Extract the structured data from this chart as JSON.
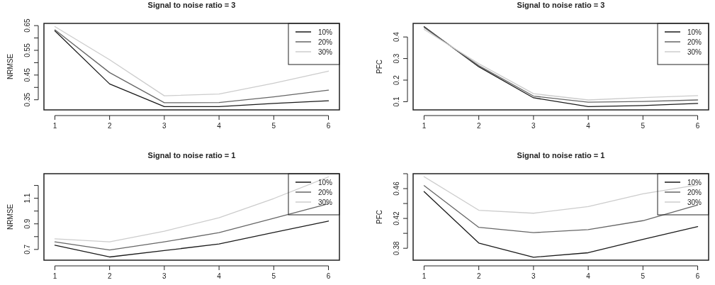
{
  "chart_data": [
    {
      "type": "line",
      "title": "Signal to noise ratio = 3",
      "ylabel": "NRMSE",
      "x": [
        1,
        2,
        3,
        4,
        5,
        6
      ],
      "xlim": [
        0.8,
        6.2
      ],
      "xticks": [
        1,
        2,
        3,
        4,
        5,
        6
      ],
      "ylim": [
        0.309,
        0.659
      ],
      "yticks": [
        0.35,
        {
          "value": 0.4,
          "label": null
        },
        0.45,
        {
          "value": 0.5,
          "label": null
        },
        0.55,
        {
          "value": 0.6,
          "label": null
        },
        0.65
      ],
      "legend": "top right",
      "grid": false,
      "series": [
        {
          "name": "10%",
          "color": "#1a1a1a",
          "values": [
            0.629,
            0.414,
            0.322,
            0.322,
            0.335,
            0.346
          ]
        },
        {
          "name": "20%",
          "color": "#666666",
          "values": [
            0.633,
            0.46,
            0.338,
            0.339,
            0.362,
            0.389
          ]
        },
        {
          "name": "30%",
          "color": "#cccccc",
          "values": [
            0.646,
            0.512,
            0.366,
            0.373,
            0.417,
            0.466
          ]
        }
      ]
    },
    {
      "type": "line",
      "title": "Signal to noise ratio = 3",
      "ylabel": "PFC",
      "x": [
        1,
        2,
        3,
        4,
        5,
        6
      ],
      "xlim": [
        0.8,
        6.2
      ],
      "xticks": [
        1,
        2,
        3,
        4,
        5,
        6
      ],
      "ylim": [
        0.062,
        0.463
      ],
      "yticks": [
        0.1,
        0.2,
        0.3,
        0.4
      ],
      "legend": "top right",
      "grid": false,
      "series": [
        {
          "name": "10%",
          "color": "#1a1a1a",
          "values": [
            0.448,
            0.262,
            0.118,
            0.077,
            0.082,
            0.092
          ]
        },
        {
          "name": "20%",
          "color": "#666666",
          "values": [
            0.444,
            0.267,
            0.126,
            0.098,
            0.101,
            0.108
          ]
        },
        {
          "name": "30%",
          "color": "#cccccc",
          "values": [
            0.435,
            0.276,
            0.137,
            0.108,
            0.119,
            0.128
          ]
        }
      ]
    },
    {
      "type": "line",
      "title": "Signal to noise ratio = 1",
      "ylabel": "NRMSE",
      "x": [
        1,
        2,
        3,
        4,
        5,
        6
      ],
      "xlim": [
        0.8,
        6.2
      ],
      "xticks": [
        1,
        2,
        3,
        4,
        5,
        6
      ],
      "ylim": [
        0.616,
        1.292
      ],
      "yticks": [
        0.7,
        {
          "value": 0.8,
          "label": null
        },
        0.9,
        {
          "value": 1.0,
          "label": null
        },
        1.1,
        {
          "value": 1.2,
          "label": null
        }
      ],
      "legend": "top right",
      "grid": false,
      "series": [
        {
          "name": "10%",
          "color": "#1a1a1a",
          "values": [
            0.733,
            0.641,
            0.691,
            0.743,
            0.833,
            0.922
          ]
        },
        {
          "name": "20%",
          "color": "#666666",
          "values": [
            0.759,
            0.696,
            0.759,
            0.831,
            0.944,
            1.057
          ]
        },
        {
          "name": "30%",
          "color": "#cccccc",
          "values": [
            0.783,
            0.759,
            0.843,
            0.948,
            1.098,
            1.267
          ]
        }
      ]
    },
    {
      "type": "line",
      "title": "Signal to noise ratio = 1",
      "ylabel": "PFC",
      "x": [
        1,
        2,
        3,
        4,
        5,
        6
      ],
      "xlim": [
        0.8,
        6.2
      ],
      "xticks": [
        1,
        2,
        3,
        4,
        5,
        6
      ],
      "ylim": [
        0.364,
        0.48
      ],
      "yticks": [
        0.38,
        {
          "value": 0.4,
          "label": null
        },
        0.42,
        {
          "value": 0.44,
          "label": null
        },
        0.46,
        {
          "value": 0.48,
          "label": null
        }
      ],
      "legend": "top right",
      "grid": false,
      "series": [
        {
          "name": "10%",
          "color": "#1a1a1a",
          "values": [
            0.456,
            0.387,
            0.368,
            0.374,
            0.392,
            0.409
          ]
        },
        {
          "name": "20%",
          "color": "#666666",
          "values": [
            0.464,
            0.408,
            0.401,
            0.405,
            0.417,
            0.438
          ]
        },
        {
          "name": "30%",
          "color": "#cccccc",
          "values": [
            0.476,
            0.431,
            0.427,
            0.436,
            0.453,
            0.465
          ]
        }
      ]
    }
  ]
}
